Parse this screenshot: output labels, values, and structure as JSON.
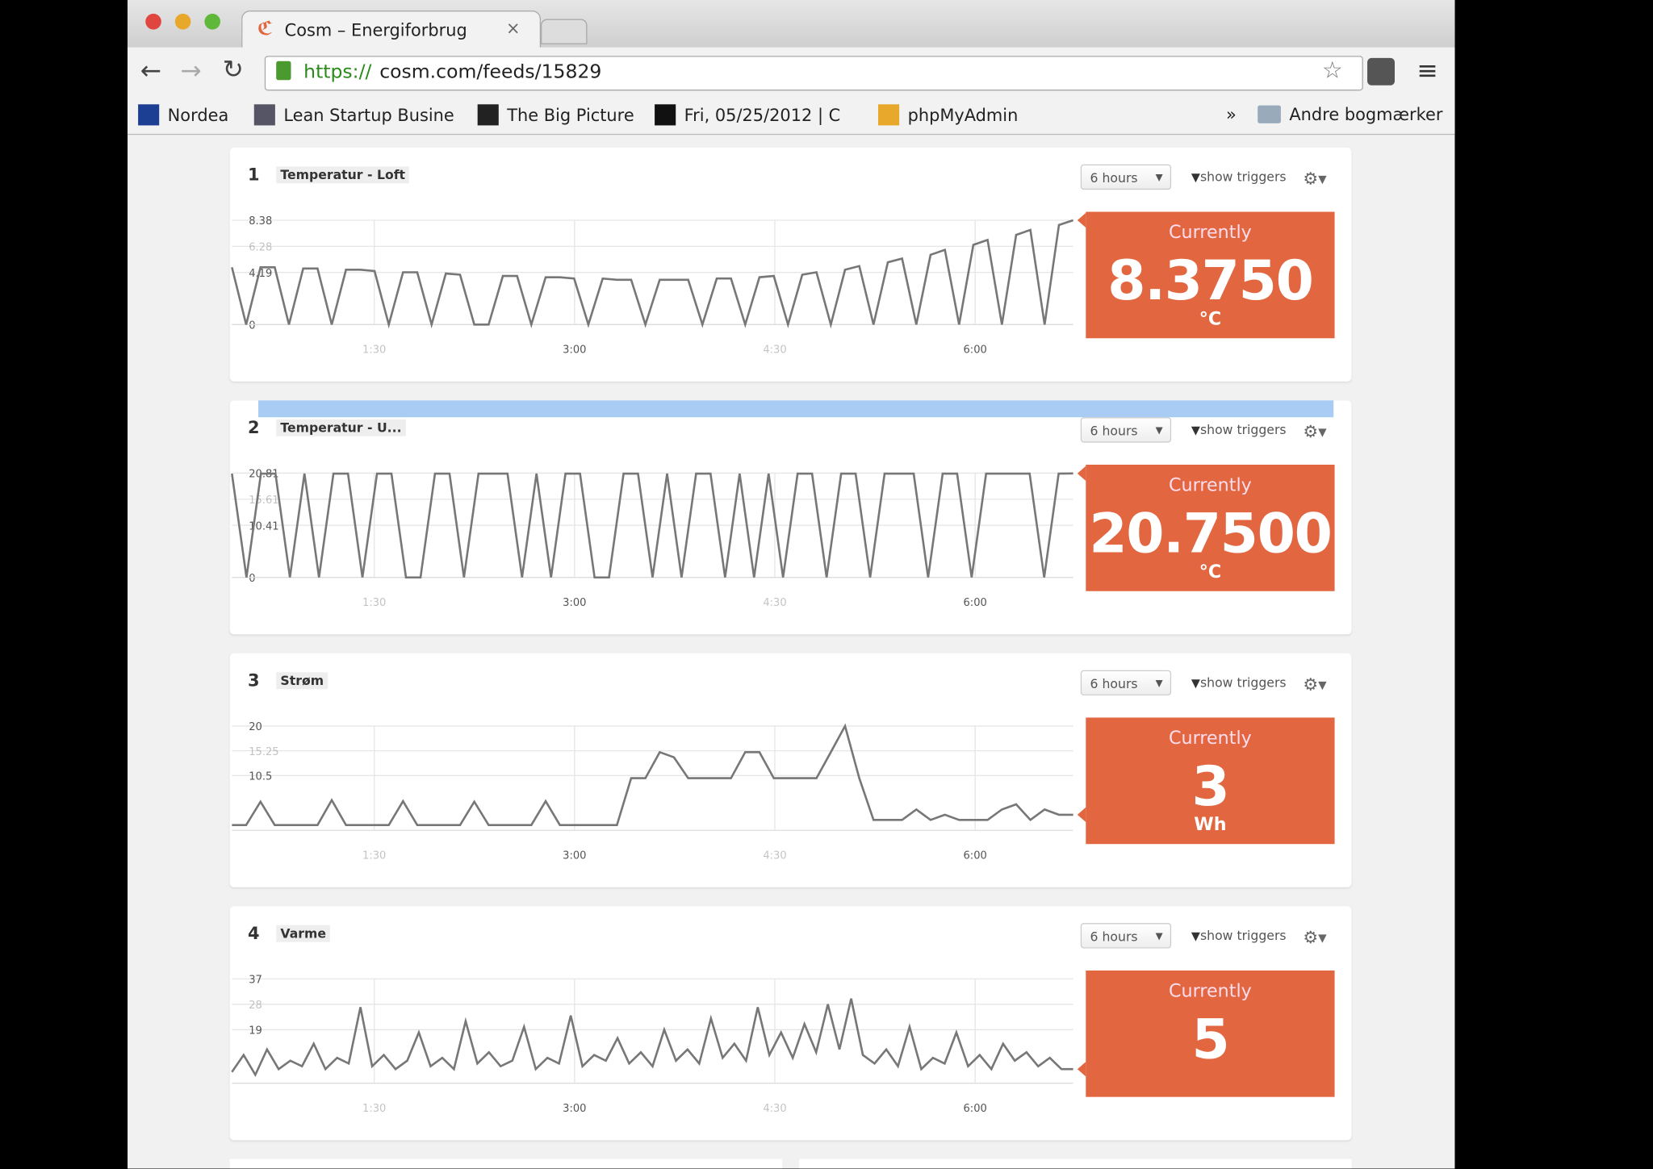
{
  "browser": {
    "tab_title": "Cosm – Energiforbrug",
    "url_scheme": "https://",
    "url_rest": "cosm.com/feeds/15829",
    "bookmarks": [
      "Nordea",
      "Lean Startup Busine",
      "The Big Picture",
      "Fri, 05/25/2012 | C",
      "phpMyAdmin"
    ],
    "more": "»",
    "other_bookmarks": "Andre bogmærker"
  },
  "feeds": [
    {
      "number": "1",
      "title": "Temperatur - Loft",
      "range": "6 hours",
      "triggers": "show triggers",
      "currently": "Currently",
      "value": "8.3750",
      "unit": "°C",
      "ylim": [
        0,
        8.38
      ],
      "yticks": [
        0,
        4.19,
        6.28,
        8.38
      ],
      "xticks": [
        "1:30",
        "3:00",
        "4:30",
        "6:00"
      ],
      "values": [
        4.6,
        0,
        4.6,
        4.6,
        0,
        4.5,
        4.5,
        0,
        4.4,
        4.4,
        4.3,
        0,
        4.2,
        4.2,
        0,
        4.1,
        4.0,
        0,
        0,
        3.9,
        3.9,
        0,
        3.8,
        3.8,
        3.7,
        0,
        3.7,
        3.6,
        3.6,
        0,
        3.6,
        3.6,
        3.6,
        0,
        3.7,
        3.7,
        0,
        3.8,
        3.9,
        0,
        4.0,
        4.2,
        0,
        4.4,
        4.7,
        0,
        5.0,
        5.3,
        0,
        5.6,
        6.0,
        0,
        6.4,
        6.8,
        0,
        7.2,
        7.6,
        0,
        8.0,
        8.38
      ]
    },
    {
      "number": "2",
      "title": "Temperatur - U...",
      "range": "6 hours",
      "triggers": "show triggers",
      "currently": "Currently",
      "value": "20.7500",
      "unit": "°C",
      "ylim": [
        0,
        20.81
      ],
      "yticks": [
        0,
        10.41,
        15.61,
        20.81
      ],
      "xticks": [
        "1:30",
        "3:00",
        "4:30",
        "6:00"
      ],
      "values": [
        20.7,
        0,
        20.7,
        20.7,
        0,
        20.7,
        0,
        20.7,
        20.7,
        0,
        20.7,
        20.7,
        0,
        0,
        20.7,
        20.7,
        0,
        20.7,
        20.7,
        20.7,
        0,
        20.7,
        0,
        20.7,
        20.7,
        0,
        0,
        20.7,
        20.7,
        0,
        20.7,
        0,
        20.7,
        20.7,
        0,
        20.7,
        0,
        20.7,
        0,
        20.7,
        20.7,
        0,
        20.7,
        20.7,
        0,
        20.7,
        20.7,
        20.7,
        0,
        20.7,
        20.7,
        0,
        20.7,
        20.7,
        20.7,
        20.7,
        0,
        20.7,
        20.75
      ]
    },
    {
      "number": "3",
      "title": "Strøm",
      "range": "6 hours",
      "triggers": "show triggers",
      "currently": "Currently",
      "value": "3",
      "unit": "Wh",
      "ylim": [
        0,
        20
      ],
      "yticks": [
        10.5,
        15.25,
        20
      ],
      "xticks": [
        "1:30",
        "3:00",
        "4:30",
        "6:00"
      ],
      "values": [
        1,
        1,
        5.5,
        1,
        1,
        1,
        1,
        5.8,
        1,
        1,
        1,
        1,
        5.6,
        1,
        1,
        1,
        1,
        5.5,
        1,
        1,
        1,
        1,
        5.6,
        1,
        1,
        1,
        1,
        1,
        10,
        10,
        15,
        14,
        10,
        10,
        10,
        10,
        15,
        15,
        10,
        10,
        10,
        10,
        15,
        20,
        10,
        2,
        2,
        2,
        4,
        2,
        3,
        2,
        2,
        2,
        4,
        5,
        2,
        4,
        3,
        3
      ]
    },
    {
      "number": "4",
      "title": "Varme",
      "range": "6 hours",
      "triggers": "show triggers",
      "currently": "Currently",
      "value": "5",
      "unit": null,
      "ylim": [
        0,
        37
      ],
      "yticks": [
        19,
        28,
        37
      ],
      "xticks": [
        "1:30",
        "3:00",
        "4:30",
        "6:00"
      ],
      "values": [
        4,
        10,
        3,
        12,
        5,
        8,
        6,
        14,
        5,
        9,
        7,
        27,
        6,
        10,
        5,
        8,
        18,
        6,
        9,
        5,
        22,
        7,
        11,
        6,
        8,
        20,
        5,
        9,
        7,
        24,
        6,
        10,
        8,
        16,
        7,
        11,
        6,
        19,
        8,
        12,
        7,
        23,
        9,
        14,
        8,
        27,
        10,
        18,
        9,
        21,
        11,
        28,
        12,
        30,
        10,
        7,
        12,
        6,
        20,
        5,
        9,
        7,
        18,
        6,
        10,
        5,
        14,
        8,
        11,
        6,
        9,
        5,
        5
      ]
    }
  ]
}
